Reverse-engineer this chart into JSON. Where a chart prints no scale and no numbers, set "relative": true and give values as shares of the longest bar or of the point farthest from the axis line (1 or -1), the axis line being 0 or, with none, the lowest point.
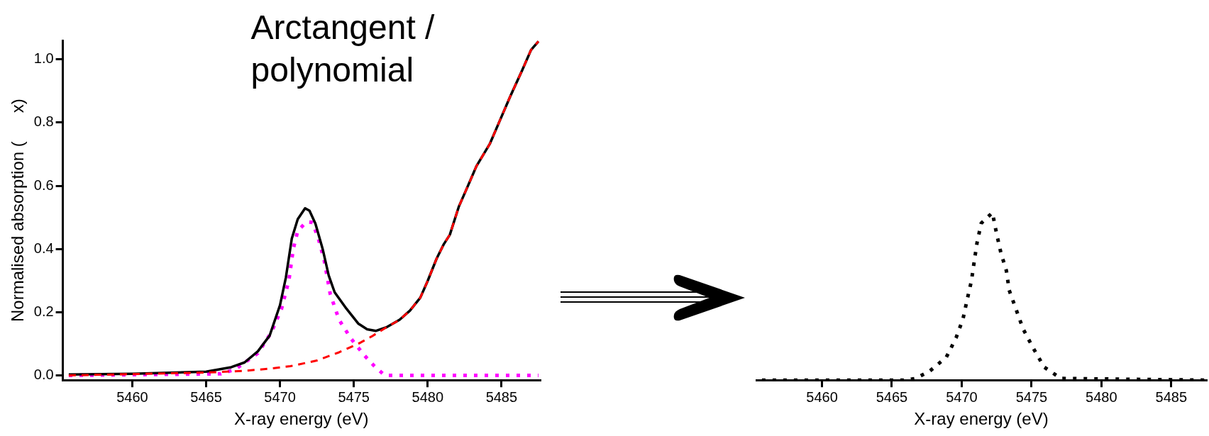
{
  "chart_data": [
    {
      "type": "line",
      "title": "Arctangent / polynomial",
      "xlabel": "X-ray energy (eV)",
      "ylabel": "Normalised absorption (      x)",
      "xlim": [
        5455.3,
        5487.6
      ],
      "ylim": [
        -0.015,
        1.06
      ],
      "xticks": [
        5460,
        5465,
        5470,
        5475,
        5480,
        5485
      ],
      "yticks": [
        {
          "value": 0,
          "label": "0.0"
        },
        {
          "value": 0.2,
          "label": "0.2"
        },
        {
          "value": 0.4,
          "label": "0.4"
        },
        {
          "value": 0.6,
          "label": "0.6"
        },
        {
          "value": 0.8,
          "label": "0.8"
        },
        {
          "value": 1,
          "label": "1.0"
        }
      ],
      "series": [
        {
          "color": "#000000",
          "line_style": "solid",
          "x": [
            5455.7,
            5460,
            5465,
            5466.7,
            5467.6,
            5468.5,
            5469.3,
            5470,
            5470.4,
            5470.8,
            5471.2,
            5471.7,
            5472,
            5472.4,
            5472.9,
            5473.3,
            5473.7,
            5474.5,
            5475.3,
            5475.9,
            5476.5,
            5477.2,
            5478.1,
            5478.8,
            5479.5,
            5480,
            5480.6,
            5481.1,
            5481.5,
            5482.1,
            5482.7,
            5483.3,
            5484.2,
            5484.9,
            5485.6,
            5486.4,
            5487,
            5487.5
          ],
          "values": [
            0.003,
            0.005,
            0.012,
            0.026,
            0.041,
            0.076,
            0.126,
            0.222,
            0.31,
            0.433,
            0.494,
            0.529,
            0.521,
            0.48,
            0.398,
            0.316,
            0.263,
            0.211,
            0.164,
            0.146,
            0.141,
            0.152,
            0.176,
            0.205,
            0.246,
            0.299,
            0.369,
            0.416,
            0.445,
            0.533,
            0.597,
            0.662,
            0.732,
            0.808,
            0.884,
            0.966,
            1.03,
            1.057
          ]
        },
        {
          "color": "#ff0000",
          "line_style": "dashed",
          "x": [
            5455.7,
            5465,
            5467.5,
            5469.2,
            5470.7,
            5472.5,
            5474,
            5475.3,
            5476.2,
            5477.2,
            5478.1,
            5478.8,
            5479.5,
            5480,
            5480.6,
            5481.1,
            5481.5,
            5482.1,
            5482.7,
            5483.3,
            5484.2,
            5484.9,
            5485.6,
            5486.4,
            5487,
            5487.5
          ],
          "values": [
            0.0,
            0.009,
            0.014,
            0.021,
            0.029,
            0.047,
            0.073,
            0.1,
            0.123,
            0.152,
            0.176,
            0.205,
            0.246,
            0.299,
            0.369,
            0.416,
            0.445,
            0.533,
            0.597,
            0.662,
            0.732,
            0.808,
            0.884,
            0.966,
            1.03,
            1.057
          ]
        },
        {
          "color": "#ff00ff",
          "line_style": "dotted",
          "x": [
            5455.7,
            5466,
            5467,
            5468.5,
            5469.4,
            5470.1,
            5470.6,
            5470.9,
            5471.2,
            5471.8,
            5472.2,
            5472.6,
            5473,
            5473.4,
            5474,
            5474.8,
            5475.7,
            5476.4,
            5477.1,
            5487.5
          ],
          "values": [
            0.0,
            0.005,
            0.02,
            0.07,
            0.135,
            0.21,
            0.3,
            0.4,
            0.457,
            0.486,
            0.484,
            0.433,
            0.363,
            0.258,
            0.176,
            0.117,
            0.064,
            0.029,
            0.0,
            0.0
          ]
        }
      ]
    },
    {
      "type": "line",
      "relative": true,
      "tick_labels": "x",
      "xlabel": "X-ray energy (eV)",
      "xlim": [
        5455.3,
        5487.5
      ],
      "xticks": [
        5460,
        5465,
        5470,
        5475,
        5480,
        5485
      ],
      "series": [
        {
          "color": "#000000",
          "line_style": "dotted",
          "x": [
            5455.7,
            5466,
            5466.7,
            5467.7,
            5468.9,
            5469.6,
            5470.1,
            5470.4,
            5470.7,
            5470.9,
            5471.1,
            5471.4,
            5472.2,
            5472.5,
            5472.8,
            5473.2,
            5473.4,
            5473.9,
            5474.4,
            5475.1,
            5475.9,
            5477.1,
            5487.5
          ],
          "values": [
            0.0,
            0.0,
            0.01,
            0.053,
            0.137,
            0.253,
            0.368,
            0.484,
            0.594,
            0.71,
            0.821,
            0.937,
            1.0,
            0.874,
            0.763,
            0.653,
            0.537,
            0.421,
            0.305,
            0.194,
            0.078,
            0.01,
            0.0
          ]
        }
      ]
    }
  ]
}
